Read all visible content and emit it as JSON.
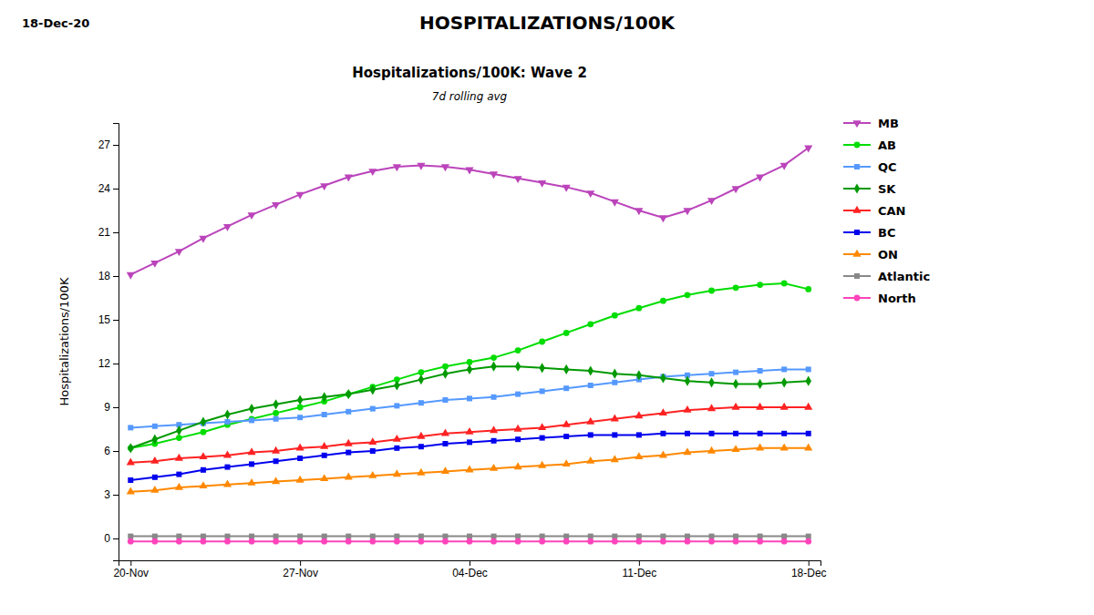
{
  "chart_data": {
    "type": "line",
    "title": "HOSPITALIZATIONS/100K",
    "subtitle": "Hospitalizations/100K: Wave 2",
    "annotations": [
      "18-Dec-20",
      "7d rolling avg"
    ],
    "ylabel": "Hospitalizations/100K",
    "categories": [
      "20-Nov",
      null,
      null,
      null,
      null,
      null,
      null,
      "27-Nov",
      null,
      null,
      null,
      null,
      null,
      null,
      "04-Dec",
      null,
      null,
      null,
      null,
      null,
      null,
      "11-Dec",
      null,
      null,
      null,
      null,
      null,
      null,
      "18-Dec"
    ],
    "ylim": [
      -1.5,
      28.5
    ],
    "yticks": [
      0,
      3,
      6,
      9,
      12,
      15,
      18,
      21,
      24,
      27
    ],
    "grid": false,
    "legend": "right",
    "series": [
      {
        "name": "MB",
        "color": "#BB44BB",
        "marker": "triangle-down",
        "values": [
          18.1,
          18.9,
          19.7,
          20.6,
          21.4,
          22.2,
          22.9,
          23.6,
          24.2,
          24.8,
          25.2,
          25.5,
          25.6,
          25.5,
          25.3,
          25.0,
          24.7,
          24.4,
          24.1,
          23.7,
          23.1,
          22.5,
          22.0,
          22.5,
          23.2,
          24.0,
          24.8,
          25.6,
          26.8
        ]
      },
      {
        "name": "AB",
        "color": "#00DD00",
        "marker": "circle",
        "values": [
          6.2,
          6.5,
          6.9,
          7.3,
          7.8,
          8.2,
          8.6,
          9.0,
          9.4,
          9.9,
          10.4,
          10.9,
          11.4,
          11.8,
          12.1,
          12.4,
          12.9,
          13.5,
          14.1,
          14.7,
          15.3,
          15.8,
          16.3,
          16.7,
          17.0,
          17.2,
          17.4,
          17.5,
          17.1
        ]
      },
      {
        "name": "QC",
        "color": "#5599FF",
        "marker": "square",
        "values": [
          7.6,
          7.7,
          7.8,
          7.9,
          8.0,
          8.1,
          8.2,
          8.3,
          8.5,
          8.7,
          8.9,
          9.1,
          9.3,
          9.5,
          9.6,
          9.7,
          9.9,
          10.1,
          10.3,
          10.5,
          10.7,
          10.9,
          11.1,
          11.2,
          11.3,
          11.4,
          11.5,
          11.6,
          11.6
        ]
      },
      {
        "name": "SK",
        "color": "#009900",
        "marker": "diamond",
        "values": [
          6.2,
          6.8,
          7.4,
          8.0,
          8.5,
          8.9,
          9.2,
          9.5,
          9.7,
          9.9,
          10.2,
          10.5,
          10.9,
          11.3,
          11.6,
          11.8,
          11.8,
          11.7,
          11.6,
          11.5,
          11.3,
          11.2,
          11.0,
          10.8,
          10.7,
          10.6,
          10.6,
          10.7,
          10.8
        ]
      },
      {
        "name": "CAN",
        "color": "#FF2222",
        "marker": "triangle-up",
        "values": [
          5.2,
          5.3,
          5.5,
          5.6,
          5.7,
          5.9,
          6.0,
          6.2,
          6.3,
          6.5,
          6.6,
          6.8,
          7.0,
          7.2,
          7.3,
          7.4,
          7.5,
          7.6,
          7.8,
          8.0,
          8.2,
          8.4,
          8.6,
          8.8,
          8.9,
          9.0,
          9.0,
          9.0,
          9.0
        ]
      },
      {
        "name": "BC",
        "color": "#0000EE",
        "marker": "square",
        "values": [
          4.0,
          4.2,
          4.4,
          4.7,
          4.9,
          5.1,
          5.3,
          5.5,
          5.7,
          5.9,
          6.0,
          6.2,
          6.3,
          6.5,
          6.6,
          6.7,
          6.8,
          6.9,
          7.0,
          7.1,
          7.1,
          7.1,
          7.2,
          7.2,
          7.2,
          7.2,
          7.2,
          7.2,
          7.2
        ]
      },
      {
        "name": "ON",
        "color": "#FF8800",
        "marker": "triangle-up",
        "values": [
          3.2,
          3.3,
          3.5,
          3.6,
          3.7,
          3.8,
          3.9,
          4.0,
          4.1,
          4.2,
          4.3,
          4.4,
          4.5,
          4.6,
          4.7,
          4.8,
          4.9,
          5.0,
          5.1,
          5.3,
          5.4,
          5.6,
          5.7,
          5.9,
          6.0,
          6.1,
          6.2,
          6.2,
          6.2
        ]
      },
      {
        "name": "Atlantic",
        "color": "#888888",
        "marker": "square",
        "values": [
          0.15,
          0.15,
          0.15,
          0.15,
          0.15,
          0.15,
          0.15,
          0.15,
          0.15,
          0.15,
          0.15,
          0.15,
          0.15,
          0.15,
          0.15,
          0.15,
          0.15,
          0.15,
          0.15,
          0.15,
          0.15,
          0.15,
          0.15,
          0.15,
          0.15,
          0.15,
          0.15,
          0.15,
          0.15
        ]
      },
      {
        "name": "North",
        "color": "#FF44BB",
        "marker": "circle",
        "values": [
          -0.2,
          -0.2,
          -0.2,
          -0.2,
          -0.2,
          -0.2,
          -0.2,
          -0.2,
          -0.2,
          -0.2,
          -0.2,
          -0.2,
          -0.2,
          -0.2,
          -0.2,
          -0.2,
          -0.2,
          -0.2,
          -0.2,
          -0.2,
          -0.2,
          -0.2,
          -0.2,
          -0.2,
          -0.2,
          -0.2,
          -0.2,
          -0.2,
          -0.2
        ]
      }
    ]
  }
}
